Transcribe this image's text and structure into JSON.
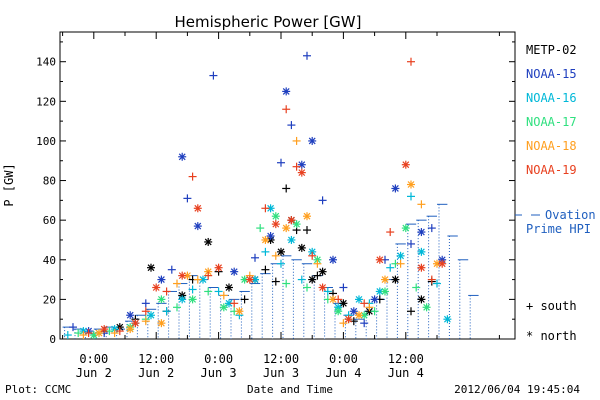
{
  "chart_data": {
    "type": "scatter",
    "title": "Hemispheric Power [GW]",
    "ylabel": "P [GW]",
    "xlabel": "Date and Time",
    "ylim": [
      0,
      155
    ],
    "yticks": [
      0,
      20,
      40,
      60,
      80,
      100,
      120,
      140
    ],
    "x_unit": "hours since 2012-06-02 00:00 UT",
    "xlim": [
      -6.5,
      81
    ],
    "xticks": [
      {
        "x": 0,
        "time": "0:00",
        "date": "Jun 2"
      },
      {
        "x": 12,
        "time": "12:00",
        "date": "Jun 2"
      },
      {
        "x": 24,
        "time": "0:00",
        "date": "Jun 3"
      },
      {
        "x": 36,
        "time": "12:00",
        "date": "Jun 3"
      },
      {
        "x": 48,
        "time": "0:00",
        "date": "Jun 4"
      },
      {
        "x": 60,
        "time": "12:00",
        "date": "Jun 4"
      }
    ],
    "grid": false,
    "legend_position": "right",
    "marker_legend": [
      {
        "marker": "+",
        "label": "south"
      },
      {
        "marker": "*",
        "label": "north"
      }
    ],
    "ovation": {
      "name": "Ovation Prime HPI",
      "legend_line1": "Ovation",
      "legend_line2": "Prime HPI",
      "color": "#1f5fbf",
      "x": [
        -6,
        -4,
        -2,
        0,
        2,
        4,
        6,
        8,
        10,
        12,
        14,
        16,
        18,
        20,
        22,
        24,
        26,
        28,
        30,
        32,
        34,
        36,
        38,
        40,
        42,
        44,
        46,
        48,
        50,
        52,
        54,
        56,
        58,
        60,
        62,
        64,
        66,
        68,
        70,
        72
      ],
      "y": [
        6,
        5,
        4,
        5,
        6,
        5,
        9,
        12,
        15,
        18,
        24,
        28,
        32,
        30,
        26,
        22,
        20,
        24,
        28,
        33,
        38,
        42,
        40,
        38,
        32,
        26,
        18,
        12,
        10,
        14,
        20,
        30,
        48,
        58,
        60,
        62,
        68,
        52,
        40,
        22
      ]
    },
    "series": [
      {
        "name": "METP-02",
        "color": "#000000",
        "x": [
          2,
          5,
          8,
          11,
          14,
          17,
          19,
          22,
          24,
          26,
          29,
          31,
          33,
          34,
          35,
          36,
          37,
          38,
          39,
          40,
          41,
          42,
          43,
          44,
          46,
          48,
          50,
          53,
          55,
          58,
          61,
          63,
          65
        ],
        "y": [
          4,
          6,
          10,
          36,
          14,
          22,
          30,
          49,
          34,
          26,
          20,
          30,
          35,
          50,
          29,
          44,
          76,
          60,
          55,
          46,
          55,
          30,
          32,
          34,
          23,
          18,
          9,
          14,
          20,
          30,
          14,
          20,
          29
        ],
        "marker": "mixed"
      },
      {
        "name": "NOAA-15",
        "color": "#1f3fbf",
        "x": [
          -4,
          -1,
          2,
          7,
          10,
          13,
          15,
          17,
          18,
          20,
          23,
          27,
          31,
          34,
          36,
          37,
          38,
          40,
          41,
          42,
          44,
          46,
          48,
          50,
          52,
          54,
          56,
          58,
          61,
          63,
          65,
          67
        ],
        "y": [
          6,
          4,
          3,
          12,
          18,
          30,
          35,
          92,
          71,
          57,
          133,
          34,
          41,
          52,
          89,
          125,
          108,
          88,
          143,
          100,
          70,
          40,
          26,
          14,
          8,
          20,
          40,
          76,
          48,
          54,
          56,
          40
        ],
        "marker": "mixed"
      },
      {
        "name": "NOAA-16",
        "color": "#00b8d8",
        "x": [
          -5,
          -2,
          1,
          4,
          8,
          11,
          14,
          17,
          19,
          21,
          24,
          26,
          28,
          31,
          33,
          34,
          36,
          38,
          40,
          42,
          45,
          47,
          49,
          51,
          53,
          55,
          57,
          59,
          61,
          63,
          66,
          68
        ],
        "y": [
          2,
          4,
          3,
          5,
          8,
          12,
          14,
          20,
          25,
          30,
          24,
          18,
          12,
          30,
          44,
          66,
          38,
          50,
          30,
          44,
          24,
          16,
          12,
          20,
          18,
          24,
          36,
          42,
          72,
          44,
          28,
          10
        ],
        "marker": "mixed"
      },
      {
        "name": "NOAA-17",
        "color": "#2fe07f",
        "x": [
          -3,
          0,
          3,
          7,
          10,
          13,
          16,
          19,
          22,
          25,
          27,
          29,
          32,
          35,
          37,
          39,
          41,
          43,
          45,
          47,
          49,
          52,
          54,
          56,
          58,
          60,
          62,
          64
        ],
        "y": [
          3,
          2,
          4,
          6,
          10,
          20,
          16,
          20,
          24,
          16,
          14,
          30,
          56,
          62,
          28,
          58,
          26,
          40,
          20,
          14,
          10,
          12,
          14,
          24,
          38,
          56,
          26,
          16
        ],
        "marker": "mixed"
      },
      {
        "name": "NOAA-18",
        "color": "#ff9f1f",
        "x": [
          -2,
          1,
          4,
          7,
          10,
          13,
          16,
          18,
          20,
          22,
          25,
          28,
          30,
          33,
          35,
          37,
          39,
          41,
          43,
          46,
          48,
          51,
          53,
          56,
          59,
          61,
          63,
          66
        ],
        "y": [
          2,
          3,
          3,
          5,
          9,
          8,
          28,
          32,
          30,
          34,
          22,
          14,
          32,
          50,
          42,
          56,
          100,
          62,
          38,
          20,
          8,
          12,
          16,
          30,
          38,
          78,
          68,
          38
        ],
        "marker": "mixed"
      },
      {
        "name": "NOAA-19",
        "color": "#e8401f",
        "x": [
          -1,
          2,
          5,
          8,
          10,
          12,
          14,
          17,
          19,
          20,
          22,
          24,
          27,
          30,
          33,
          35,
          37,
          38,
          39,
          40,
          42,
          44,
          47,
          49,
          52,
          55,
          57,
          60,
          61,
          63,
          65,
          67
        ],
        "y": [
          3,
          5,
          4,
          8,
          14,
          26,
          24,
          32,
          82,
          66,
          32,
          36,
          18,
          30,
          66,
          58,
          116,
          60,
          87,
          84,
          42,
          26,
          20,
          10,
          18,
          40,
          54,
          88,
          140,
          36,
          30,
          38
        ],
        "marker": "mixed"
      }
    ],
    "footer_left": "Plot: CCMC",
    "footer_center": "Date and Time",
    "footer_right": "2012/06/04 19:45:04"
  }
}
